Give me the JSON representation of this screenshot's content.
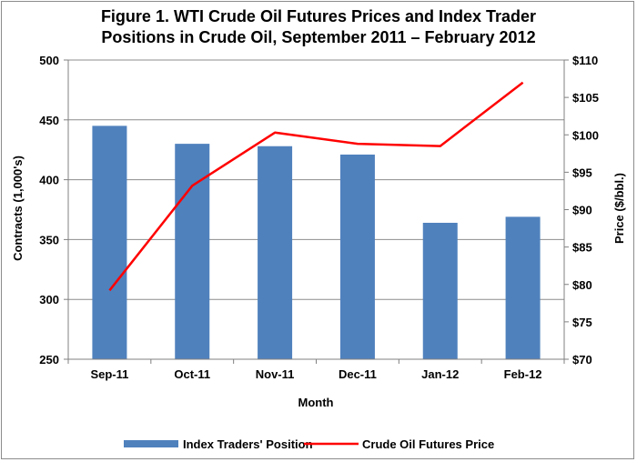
{
  "chart_data": {
    "type": "bar+line",
    "title_lines": [
      "Figure 1. WTI Crude Oil Futures Prices and Index Trader",
      "Positions in Crude Oil, September 2011 – February 2012"
    ],
    "xlabel": "Month",
    "ylabel_left": "Contracts (1,000's)",
    "ylabel_right": "Price ($/bbl.)",
    "categories": [
      "Sep-11",
      "Oct-11",
      "Nov-11",
      "Dec-11",
      "Jan-12",
      "Feb-12"
    ],
    "ylim_left": [
      250,
      500
    ],
    "yticks_left": [
      "250",
      "300",
      "350",
      "400",
      "450",
      "500"
    ],
    "ylim_right": [
      70,
      110
    ],
    "yticks_right": [
      "$70",
      "$75",
      "$80",
      "$85",
      "$90",
      "$95",
      "$100",
      "$105",
      "$110"
    ],
    "grid": true,
    "legend_position": "bottom",
    "series": [
      {
        "name": "Index Traders' Position",
        "kind": "bar",
        "axis": "left",
        "color": "#4f81bd",
        "values": [
          445,
          430,
          428,
          421,
          364,
          369
        ]
      },
      {
        "name": "Crude Oil Futures Price",
        "kind": "line",
        "axis": "right",
        "color": "#ff0000",
        "values": [
          79.2,
          93.2,
          100.3,
          98.8,
          98.5,
          107.0
        ]
      }
    ]
  }
}
